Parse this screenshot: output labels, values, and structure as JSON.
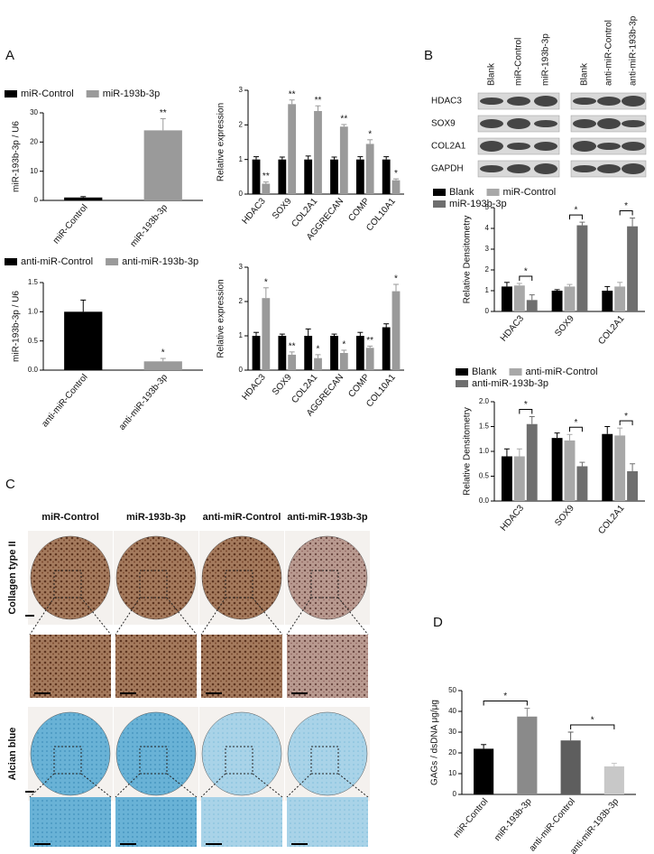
{
  "panels": {
    "a": "A",
    "b": "B",
    "c": "C",
    "d": "D"
  },
  "blot": {
    "columns": [
      "Blank",
      "miR-Control",
      "miR-193b-3p",
      "Blank",
      "anti-miR-Control",
      "anti-miR-193b-3p"
    ],
    "rows": [
      "HDAC3",
      "SOX9",
      "COL2A1",
      "GAPDH"
    ]
  },
  "histology": {
    "columns": [
      "miR-Control",
      "miR-193b-3p",
      "anti-miR-Control",
      "anti-miR-193b-3p"
    ],
    "rows": [
      "Collagen type II",
      "Alcian blue"
    ]
  },
  "chart_data": [
    {
      "type": "bar",
      "ylabel": "miR-193b-3p / U6",
      "categories": [
        "miR-Control",
        "miR-193b-3p"
      ],
      "values": [
        1,
        24
      ],
      "errors": [
        0.3,
        4
      ],
      "colors": [
        "#000000",
        "#9a9a9a"
      ],
      "annotations": [
        null,
        "**"
      ],
      "ylim": [
        0,
        30
      ],
      "yticks": [
        0,
        10,
        20,
        30
      ],
      "legend": "top"
    },
    {
      "type": "bar",
      "ylabel": "miR-193b-3p / U6",
      "categories": [
        "anti-miR-Control",
        "anti-miR-193b-3p"
      ],
      "values": [
        1.0,
        0.15
      ],
      "errors": [
        0.2,
        0.05
      ],
      "colors": [
        "#000000",
        "#9a9a9a"
      ],
      "annotations": [
        null,
        "*"
      ],
      "ylim": [
        0,
        1.5
      ],
      "yticks": [
        {
          "value": 0,
          "label": "0.0"
        },
        0.5,
        {
          "value": 1,
          "label": "1.0"
        },
        1.5
      ],
      "legend": "top"
    },
    {
      "type": "bar",
      "ylabel": "Relative expression",
      "categories": [
        "HDAC3",
        "SOX9",
        "COL2A1",
        "AGGRECAN",
        "COMP",
        "COL10A1"
      ],
      "series": [
        {
          "name": "miR-Control",
          "color": "#000000",
          "values": [
            1,
            1,
            1,
            1,
            1,
            1
          ],
          "errors": [
            0.08,
            0.07,
            0.1,
            0.07,
            0.08,
            0.08
          ]
        },
        {
          "name": "miR-193b-3p",
          "color": "#9a9a9a",
          "values": [
            0.3,
            2.6,
            2.4,
            1.95,
            1.45,
            0.4
          ],
          "errors": [
            0.05,
            0.12,
            0.15,
            0.06,
            0.12,
            0.04
          ]
        }
      ],
      "annotations": [
        "**",
        "**",
        "**",
        "**",
        "*",
        "*"
      ],
      "ylim": [
        0,
        3
      ],
      "yticks": [
        0,
        1,
        2,
        3
      ]
    },
    {
      "type": "bar",
      "ylabel": "Relative expression",
      "categories": [
        "HDAC3",
        "SOX9",
        "COL2A1",
        "AGGRECAN",
        "COMP",
        "COL10A1"
      ],
      "series": [
        {
          "name": "anti-miR-Control",
          "color": "#000000",
          "values": [
            1,
            1,
            1,
            1,
            1,
            1.25
          ],
          "errors": [
            0.1,
            0.05,
            0.2,
            0.05,
            0.1,
            0.1
          ]
        },
        {
          "name": "anti-miR-193b-3p",
          "color": "#9a9a9a",
          "values": [
            2.1,
            0.45,
            0.35,
            0.5,
            0.65,
            2.3
          ],
          "errors": [
            0.3,
            0.08,
            0.1,
            0.08,
            0.05,
            0.2
          ]
        }
      ],
      "annotations": [
        "*",
        "**",
        "*",
        "*",
        "**",
        "*"
      ],
      "ylim": [
        0,
        3
      ],
      "yticks": [
        0,
        1,
        2,
        3
      ]
    },
    {
      "type": "bar",
      "ylabel": "Relative Densitometry",
      "categories": [
        "HDAC3",
        "SOX9",
        "COL2A1"
      ],
      "series": [
        {
          "name": "Blank",
          "color": "#000000",
          "values": [
            1.2,
            1.0,
            1.0
          ],
          "errors": [
            0.2,
            0.05,
            0.2
          ]
        },
        {
          "name": "miR-Control",
          "color": "#a8a8a8",
          "values": [
            1.25,
            1.2,
            1.2
          ],
          "errors": [
            0.1,
            0.1,
            0.2
          ]
        },
        {
          "name": "miR-193b-3p",
          "color": "#6e6e6e",
          "values": [
            0.55,
            4.15,
            4.1
          ],
          "errors": [
            0.25,
            0.15,
            0.4
          ]
        }
      ],
      "annotations": [
        "*",
        "*",
        "*"
      ],
      "brackets": true,
      "ylim": [
        0,
        5
      ],
      "yticks": [
        0,
        1,
        2,
        3,
        4,
        5
      ],
      "legend": "top"
    },
    {
      "type": "bar",
      "ylabel": "Relative Densitometry",
      "categories": [
        "HDAC3",
        "SOX9",
        "COL2A1"
      ],
      "series": [
        {
          "name": "Blank",
          "color": "#000000",
          "values": [
            0.9,
            1.27,
            1.35
          ],
          "errors": [
            0.15,
            0.1,
            0.15
          ]
        },
        {
          "name": "anti-miR-Control",
          "color": "#a8a8a8",
          "values": [
            0.9,
            1.22,
            1.32
          ],
          "errors": [
            0.15,
            0.12,
            0.15
          ]
        },
        {
          "name": "anti-miR-193b-3p",
          "color": "#6e6e6e",
          "values": [
            1.55,
            0.7,
            0.6
          ],
          "errors": [
            0.15,
            0.08,
            0.15
          ]
        }
      ],
      "annotations": [
        "*",
        "*",
        "*"
      ],
      "brackets": true,
      "ylim": [
        0,
        2
      ],
      "yticks": [
        {
          "value": 0,
          "label": "0.0"
        },
        0.5,
        {
          "value": 1,
          "label": "1.0"
        },
        1.5,
        {
          "value": 2,
          "label": "2.0"
        }
      ],
      "legend": "top"
    },
    {
      "type": "bar",
      "ylabel": "GAGs / dsDNA μg/μg",
      "categories": [
        "miR-Control",
        "miR-193b-3p",
        "anti-miR-Control",
        "anti-miR-193b-3p"
      ],
      "values": [
        22,
        37.5,
        26,
        13.5
      ],
      "errors": [
        2,
        4,
        4,
        1.5
      ],
      "colors": [
        "#000000",
        "#8a8a8a",
        "#5e5e5e",
        "#c8c8c8"
      ],
      "annotations": [
        null,
        "*",
        null,
        "*"
      ],
      "brackets": true,
      "ylim": [
        0,
        50
      ],
      "yticks": [
        0,
        10,
        20,
        30,
        40,
        50
      ]
    }
  ]
}
